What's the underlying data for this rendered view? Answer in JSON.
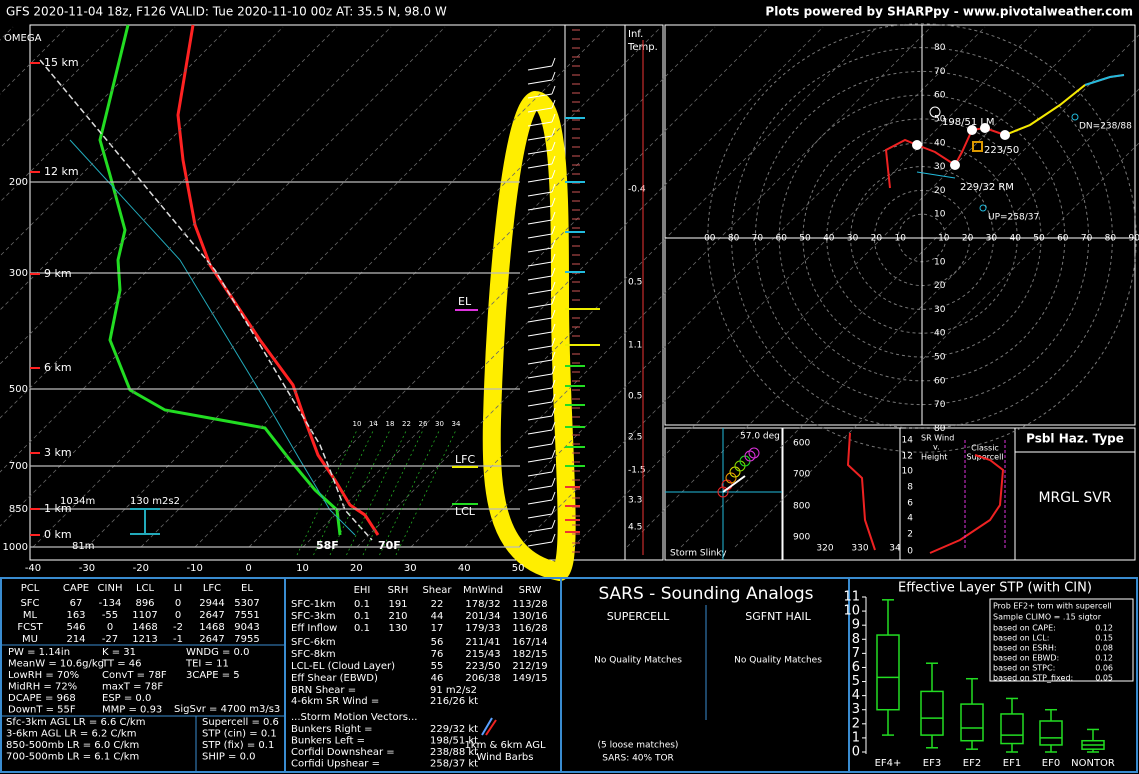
{
  "header": {
    "title": "GFS 2020-11-04 18z, F126  VALID: Tue 2020-11-10 00z  AT: 35.5 N, 98.0 W",
    "credit": "Plots powered by SHARPpy - www.pivotalweather.com"
  },
  "skewt": {
    "omega": "OMEGA",
    "pressures": [
      "200",
      "300",
      "500",
      "700",
      "850",
      "1000"
    ],
    "heights": [
      "15 km",
      "12 km",
      "9 km",
      "6 km",
      "3 km",
      "1 km",
      "0 km"
    ],
    "temps": [
      "-40",
      "-30",
      "-20",
      "-10",
      "0",
      "10",
      "20",
      "30",
      "40",
      "50"
    ],
    "mixing_ratios": [
      "10",
      "14",
      "18",
      "22",
      "26",
      "30",
      "34"
    ],
    "el": "EL",
    "lfc": "LFC",
    "lcl": "LCL",
    "sfc_temp": "70F",
    "sfc_dewpoint": "58F",
    "sfc_height": "81m",
    "eff_inflow_top": "1034m",
    "eff_srh": "130 m2s2"
  },
  "inflection": {
    "title": [
      "Inf.",
      "Temp."
    ],
    "labels": [
      "-0.4",
      "0.5",
      "1.1",
      "0.5",
      "2.5",
      "-1.5",
      "3.3",
      "4.5"
    ]
  },
  "hodograph": {
    "up": [
      "80",
      "70",
      "60",
      "50",
      "40",
      "30",
      "20",
      "10"
    ],
    "down": [
      "10",
      "20",
      "30",
      "40",
      "50",
      "60",
      "70",
      "80"
    ],
    "left": [
      "00",
      "80",
      "70",
      "60",
      "50",
      "40",
      "30",
      "20",
      "10"
    ],
    "right": [
      "10",
      "20",
      "30",
      "40",
      "50",
      "60",
      "70",
      "80",
      "90"
    ],
    "points": [
      "1",
      "2",
      "3",
      "4",
      "5"
    ],
    "left_mover": "198/51 LM",
    "cloud_layer": "223/50",
    "right_mover": "229/32 RM",
    "downshear": "DN=238/88",
    "upshear": "UP=258/37"
  },
  "slinky": {
    "angle": "57.0 deg",
    "title": "Storm Slinky"
  },
  "theta": {
    "pressures": [
      "600",
      "700",
      "800",
      "900"
    ],
    "temps": [
      "320",
      "330",
      "34"
    ]
  },
  "srwind": {
    "title": [
      "SR Wind",
      "v.",
      "Height"
    ],
    "annotation": [
      "Classic",
      "Supercell"
    ],
    "heights": [
      "14",
      "12",
      "10",
      "8",
      "6",
      "4",
      "2",
      "0"
    ]
  },
  "hazard": {
    "title": "Psbl Haz. Type",
    "value": "MRGL SVR"
  },
  "thermo": {
    "headers": [
      "PCL",
      "CAPE",
      "CINH",
      "LCL",
      "LI",
      "LFC",
      "EL"
    ],
    "rows": [
      [
        "SFC",
        "67",
        "-134",
        "896",
        "0",
        "2944",
        "5307"
      ],
      [
        "ML",
        "163",
        "-55",
        "1107",
        "0",
        "2647",
        "7551"
      ],
      [
        "FCST",
        "546",
        "0",
        "1468",
        "-2",
        "1468",
        "9043"
      ],
      [
        "MU",
        "214",
        "-27",
        "1213",
        "-1",
        "2647",
        "7955"
      ]
    ],
    "indices_left": [
      "PW = 1.14in",
      "MeanW = 10.6g/kg",
      "LowRH = 70%",
      "MidRH = 72%",
      "DCAPE = 968",
      "DownT = 55F"
    ],
    "indices_mid": [
      "K = 31",
      "TT = 46",
      "ConvT = 78F",
      "maxT = 78F",
      "ESP = 0.0",
      "MMP = 0.93"
    ],
    "indices_right": [
      "WNDG = 0.0",
      "TEI = 11",
      "3CAPE = 5"
    ],
    "sigsvr": "SigSvr = 4700 m3/s3",
    "lapse_rates": [
      "Sfc-3km AGL LR = 6.6 C/km",
      "3-6km AGL LR = 6.2 C/km",
      "850-500mb LR = 6.0 C/km",
      "700-500mb LR = 6.1 C/km"
    ],
    "params": [
      "Supercell = 0.6",
      "STP (cin) = 0.1",
      "STP (fix) = 0.1",
      "SHIP = 0.0"
    ]
  },
  "kinematic": {
    "headers": [
      "EHI",
      "SRH",
      "Shear",
      "MnWind",
      "SRW"
    ],
    "rows": [
      [
        "SFC-1km",
        "0.1",
        "191",
        "22",
        "178/32",
        "113/28"
      ],
      [
        "SFC-3km",
        "0.1",
        "210",
        "44",
        "201/34",
        "130/16"
      ],
      [
        "Eff Inflow",
        "0.1",
        "130",
        "17",
        "179/33",
        "116/28"
      ]
    ],
    "shear_rows": [
      [
        "SFC-6km",
        "56",
        "211/41",
        "167/14"
      ],
      [
        "SFC-8km",
        "76",
        "215/43",
        "182/15"
      ],
      [
        "LCL-EL (Cloud Layer)",
        "55",
        "223/50",
        "212/19"
      ],
      [
        "Eff Shear (EBWD)",
        "46",
        "206/38",
        "149/15"
      ]
    ],
    "brn": [
      "BRN Shear =",
      "91 m2/s2"
    ],
    "sr_wind": [
      "4-6km SR Wind =",
      "216/26 kt"
    ],
    "motion_title": "...Storm Motion Vectors...",
    "motions": [
      [
        "Bunkers Right =",
        "229/32 kt"
      ],
      [
        "Bunkers Left =",
        "198/51 kt"
      ],
      [
        "Corfidi Downshear =",
        "238/88 kt"
      ],
      [
        "Corfidi Upshear =",
        "258/37 kt"
      ]
    ],
    "barb_note": [
      "1km & 6km AGL",
      "Wind Barbs"
    ]
  },
  "sars": {
    "title": "SARS - Sounding Analogs",
    "supercell": "SUPERCELL",
    "hail": "SGFNT HAIL",
    "supercell_result": "No Quality Matches",
    "hail_result": "No Quality Matches",
    "loose": "(5 loose matches)",
    "tor": "SARS: 40% TOR"
  },
  "stp": {
    "title": "Effective Layer STP (with CIN)",
    "ylim": [
      0,
      11
    ],
    "yticks": [
      0,
      1,
      2,
      3,
      4,
      5,
      6,
      7,
      8,
      9,
      10,
      11
    ],
    "categories": [
      "EF4+",
      "EF3",
      "EF2",
      "EF1",
      "EF0",
      "NONTOR"
    ],
    "boxes": [
      [
        1.2,
        3,
        5.3,
        8.3,
        10.8
      ],
      [
        0.3,
        1.2,
        2.4,
        4.3,
        6.3
      ],
      [
        0.2,
        0.8,
        1.7,
        3.4,
        5.2
      ],
      [
        0,
        0.6,
        1.2,
        2.7,
        3.8
      ],
      [
        0,
        0.5,
        1,
        2.2,
        3
      ],
      [
        0,
        0.2,
        0.5,
        0.8,
        1.6
      ]
    ],
    "prob_title": [
      "Prob EF2+ torn with supercell",
      "Sample CLIMO = .15 sigtor"
    ],
    "prob_rows": [
      [
        "based on CAPE:",
        "0.12"
      ],
      [
        "based on LCL:",
        "0.15"
      ],
      [
        "based on ESRH:",
        "0.08"
      ],
      [
        "based on EBWD:",
        "0.12"
      ],
      [
        "based on STPC:",
        "0.06"
      ],
      [
        "based on STP_fixed:",
        "0.05"
      ]
    ]
  }
}
